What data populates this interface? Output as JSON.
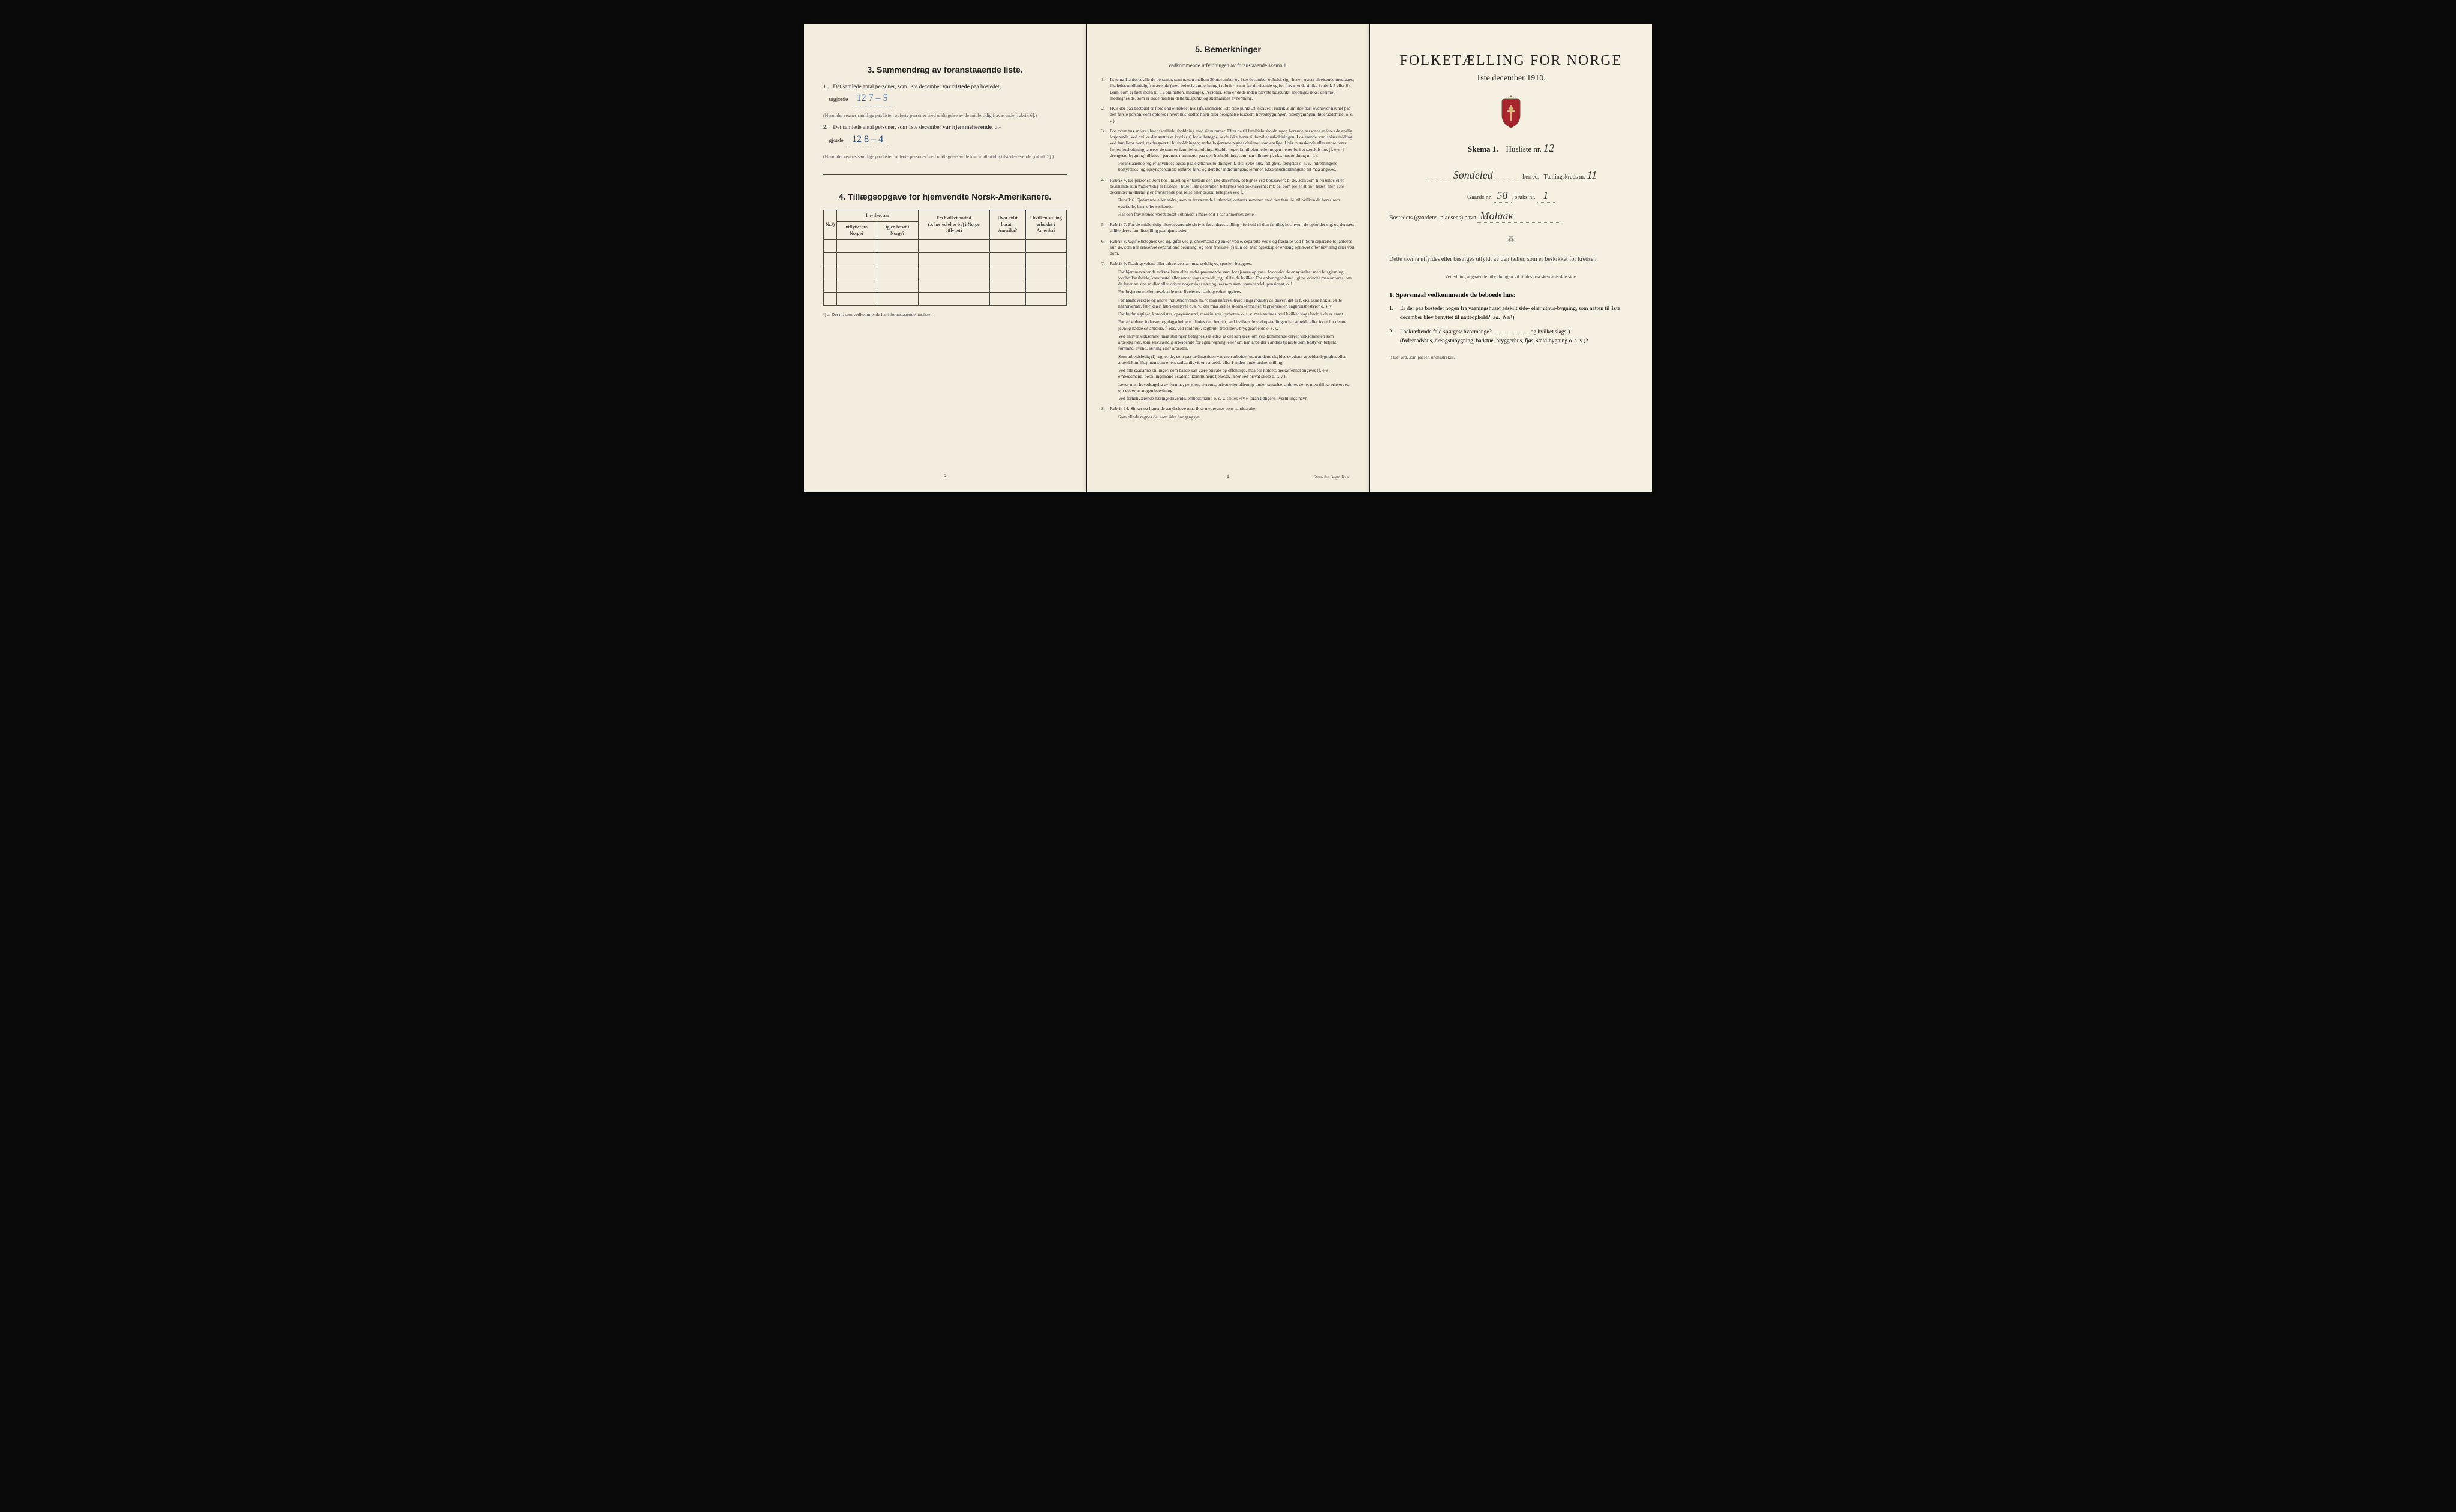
{
  "leftPage": {
    "section3": {
      "title": "3.  Sammendrag av foranstaaende liste.",
      "item1_prefix": "1.",
      "item1_text": "Det samlede antal personer, som 1ste december",
      "item1_bold": "var tilstede",
      "item1_suffix": "paa bostedet,",
      "item1_line2": "utgjorde",
      "item1_value": "12   7 – 5",
      "item1_note": "(Herunder regnes samtlige paa listen opførte personer med undtagelse av de midlertidig fraværende [rubrik 6].)",
      "item2_prefix": "2.",
      "item2_text": "Det samlede antal personer, som 1ste december",
      "item2_bold": "var hjemmehørende",
      "item2_suffix": ", ut-",
      "item2_line2": "gjorde",
      "item2_value": "12   8 – 4",
      "item2_note": "(Herunder regnes samtlige paa listen opførte personer med undtagelse av de kun midlertidig tilstedeværende [rubrik 5].)"
    },
    "section4": {
      "title": "4.  Tillægsopgave for hjemvendte Norsk-Amerikanere.",
      "col1": "Nr.¹)",
      "col2_top": "I hvilket aar",
      "col2a": "utflyttet fra Norge?",
      "col2b": "igjen bosat i Norge?",
      "col3_top": "Fra hvilket bosted",
      "col3_sub": "(ɔ: herred eller by) i Norge utflyttet?",
      "col4_top": "Hvor sidst",
      "col4_sub": "bosat i Amerika?",
      "col5_top": "I hvilken stilling",
      "col5_sub": "arbeidet i Amerika?",
      "footnote": "¹) ɔ: Det nr. som vedkommende har i foranstaaende husliste.",
      "pageNum": "3"
    }
  },
  "centerPage": {
    "title": "5.  Bemerkninger",
    "subtitle": "vedkommende utfyldningen av foranstaaende skema 1.",
    "remarks": [
      {
        "num": "1.",
        "text": "I skema 1 anføres alle de personer, som natten mellem 30 november og 1ste december opholdt sig i huset; ogsaa tilreisende medtages; likeledes midlertidig fraværende (med behørig anmerkning i rubrik 4 samt for tilreisende og for fraværende tillike i rubrik 5 eller 6). Barn, som er født inden kl. 12 om natten, medtages. Personer, som er døde inden nævnte tidspunkt, medtages ikke; derimot medregnes de, som er døde mellem dette tidspunkt og skemaernes avhentning."
      },
      {
        "num": "2.",
        "text": "Hvis der paa bostedet er flere end ét beboet hus (jfr. skemaets 1ste side punkt 2), skrives i rubrik 2 umiddelbart ovenover navnet paa den første person, som opføres i hvert hus, dettes navn eller betegnelse (saasom hovedbygningen, sidebygningen, føderaadshuset o. s. v.)."
      },
      {
        "num": "3.",
        "text": "For hvert hus anføres hver familiehusholdning med sit nummer. Efter de til familiehusholdningen hørende personer anføres de enslig losjerende, ved hvilke der sættes et kryds (×) for at betegne, at de ikke hører til familiehusholdningen. Losjerende som spiser middag ved familiens bord, medregnes til husholdningen; andre losjerende regnes derimot som enslige. Hvis to søskende eller andre fører fælles husholdning, ansees de som en familiehusholding. Skulde noget familielem eller nogen tjener bo i et særskilt hus (f. eks. i drengestu-bygning) tilføies i parentes nummeret paa den husholdning, som han tilhører (f. eks. husholdning nr. 1).",
        "extra": "Foranstaaende regler anvendes ogsaa paa ekstrahusholdninger, f. eks. syke-hus, fattighus, fængsler o. s. v. Indretningens bestyrelses- og opsynspersonale opføres først og derefter indretningens lemmer. Ekstrahusholdningens art maa angives."
      },
      {
        "num": "4.",
        "text": "Rubrik 4. De personer, som bor i huset og er tilstede der 1ste december, betegnes ved bokstaven: b; de, som som tilreisende eller besøkende kun midlertidig er tilstede i huset 1ste december, betegnes ved bokstaverne: mt; de, som pleier at bo i huset, men 1ste december midlertidig er fraværende paa reise eller besøk, betegnes ved f.",
        "extra": "Rubrik 6. Sjøfarende eller andre, som er fraværende i utlandet, opføres sammen med den familie, til hvilken de hører som egtefælle, barn eller søskende.",
        "extra2": "Har den fraværende været bosat i utlandet i mere end 1 aar anmerkes dette."
      },
      {
        "num": "5.",
        "text": "Rubrik 7. For de midlertidig tilstedeværende skrives først deres stilling i forhold til den familie, hos hvem de opholder sig, og dernæst tillike deres familiestilling paa hjemstedet."
      },
      {
        "num": "6.",
        "text": "Rubrik 8. Ugifte betegnes ved ug, gifte ved g, enkemænd og enker ved e, separerte ved s og fraskilte ved f. Som separerte (s) anføres kun de, som har erhvervet separations-bevilling; og som fraskilte (f) kun de, hvis egteskap er endelig ophævet efter bevilling eller ved dom."
      },
      {
        "num": "7.",
        "text": "Rubrik 9. Næringsveiens eller erhvervets art maa tydelig og specielt betegnes.",
        "extra": "For hjemmeværende voksne barn eller andre paarørende samt for tjenere oplyses, hvor-vidt de er sysselsat med husgjerning, jordbruksarbeide, kreaturstel eller andet slags arbeide, og i tilfælde hvilket. For enker og voksne ugifte kvinder maa anføres, om de lever av sine midler eller driver nogenslags næring, saasom søm, smaahandel, pensionat, o. l.",
        "extra2": "For losjerende eller besøkende maa likeledes næringsveien opgives.",
        "extra3": "For haandverkere og andre industridrivende m. v. maa anføres, hvad slags industri de driver; det er f. eks. ikke nok at sætte haandverker, fabrikeier, fabrikbestyrer o. s. v.; der maa sættes skomakermester, teglverkseier, sagbruksbestyrer o. s. v.",
        "extra4": "For fuldmægtiger, kontorister, opsynsmænd, maskinister, fyrbøtere o. s. v. maa anføres, ved hvilket slags bedrift de er ansat.",
        "extra5": "For arbeidere, inderster og dagarbeidere tilføies den bedrift, ved hvilken de ved op-tællingen har arbeide eller forut for denne jevnlig hadde sit arbeide, f. eks. ved jordbruk, sagbruk, træsliperi, bryggearbeide o. s. v.",
        "extra6": "Ved enhver virksomhet maa stillingen betegnes saaledes, at det kan sees, om ved-kommende driver virksomheten som arbeidsgiver, som selvstændig arbeidende for egen regning, eller om han arbeider i andres tjeneste som bestyrer, betjent, formand, svend, lærling eller arbeider.",
        "extra7": "Som arbeidsledig (l) regnes de, som paa tællingstiden var uten arbeide (uten at dette skyldes sygdom, arbeidsudygtighet eller arbeidskonflikt) men som ellers sedvanligvis er i arbeide eller i anden underordnet stilling.",
        "extra8": "Ved alle saadanne stillinger, som baade kan være private og offentlige, maa for-holdets beskaffenhet angives (f. eks. embedsmand, bestillingsmand i statens, kommunens tjeneste, lærer ved privat skole o. s. v.).",
        "extra9": "Lever man hovedsagelig av formue, pension, livrente, privat eller offentlig under-støttelse, anføres dette, men tillike erhvervet, om det er av nogen betydning.",
        "extra10": "Ved forhenværende næringsdrivende, embedsmænd o. s. v. sættes «fv.» foran tidligere livsstillings navn."
      },
      {
        "num": "8.",
        "text": "Rubrik 14. Sinker og lignende aandssløve maa ikke medregnes som aandssvake.",
        "extra": "Som blinde regnes de, som ikke har gangsyn."
      }
    ],
    "pageNum": "4",
    "printerMark": "Steen'ske Bogtr. Kr.a."
  },
  "rightPage": {
    "mainTitle": "FOLKETÆLLING FOR NORGE",
    "dateLine": "1ste december 1910.",
    "skemaLabel": "Skema 1.",
    "huslisteLabel": "Husliste nr.",
    "huslisteValue": "12",
    "herredValue": "Søndeled",
    "herredLabel": "herred.",
    "taellingLabel": "Tællingskreds nr.",
    "taellingValue": "11",
    "gaardsLabel": "Gaards nr.",
    "gaardsValue": "58",
    "bruksLabel": "bruks nr.",
    "bruksValue": "1",
    "bostedLabel": "Bostedets (gaardens, pladsens) navn",
    "bostedValue": "Molaак",
    "instruction": "Dette skema utfyldes eller besørges utfyldt av den tæller, som er beskikket for kredsen.",
    "instructionSub": "Veiledning angaaende utfyldningen vil findes paa skemaets 4de side.",
    "questionHeading": "1. Spørsmaal vedkommende de beboede hus:",
    "q1_num": "1.",
    "q1_text": "Er der paa bostedet nogen fra vaaningshuset adskilt side- eller uthus-bygning, som natten til 1ste december blev benyttet til natteophold?",
    "q1_ja": "Ja.",
    "q1_nei": "Nei",
    "q1_sup": "¹).",
    "q2_num": "2.",
    "q2_text": "I bekræftende fald spørges: hvormange?",
    "q2_text2": "og hvilket slags¹)",
    "q2_text3": "(føderaadshus, drengstubygning, badstue, bryggerhus, fjøs, stald-bygning o. s. v.)?",
    "footnote": "¹) Det ord, som passer, understrekes."
  }
}
